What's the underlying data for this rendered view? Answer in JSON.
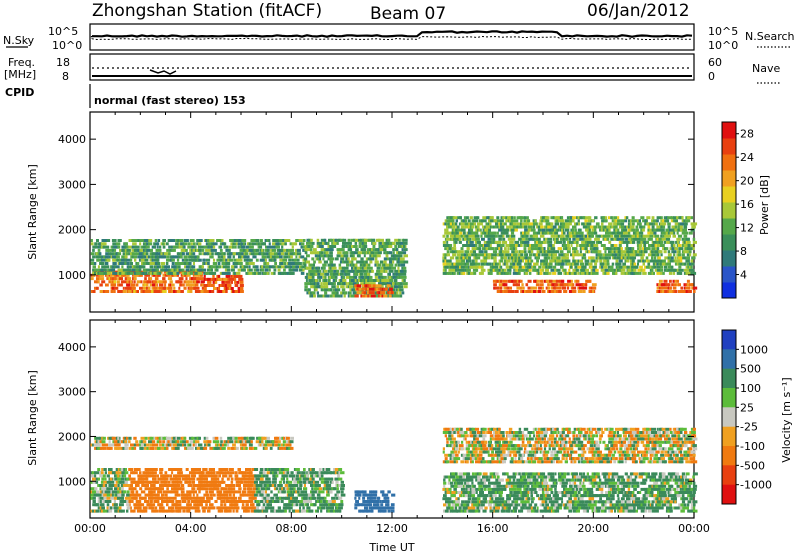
{
  "header": {
    "station": "Zhongshan Station (fitACF)",
    "beam": "Beam 07",
    "date": "06/Jan/2012"
  },
  "status_panels": {
    "nsky_label": "N.Sky",
    "nsky_ticks": [
      "10^5",
      "10^0"
    ],
    "nsearch_label": "N.Search",
    "nsearch_ticks": [
      "10^5",
      "10^0"
    ],
    "freq_label_1": "Freq.",
    "freq_label_2": "[MHz]",
    "freq_ticks": [
      "18",
      "8"
    ],
    "nave_label": "Nave",
    "nave_ticks": [
      "60",
      "0"
    ],
    "cpid_label": "CPID",
    "cpid_value": "normal (fast stereo) 153"
  },
  "chart_data": [
    {
      "type": "heatmap",
      "name": "power-panel",
      "ylabel": "Slant Range [km]",
      "xlabel": "",
      "xlim": [
        0,
        24
      ],
      "ylim": [
        180,
        4600
      ],
      "x_tick_labels": [],
      "y_ticks": [
        1000,
        2000,
        3000,
        4000
      ],
      "colorbar": {
        "label": "Power [dB]",
        "range": [
          0,
          30
        ],
        "ticks": [
          "4",
          "8",
          "12",
          "16",
          "20",
          "24",
          "28"
        ],
        "colors": [
          "#1030e0",
          "#2a55c8",
          "#2f7a7a",
          "#3a8f5a",
          "#55a84a",
          "#a8c838",
          "#e8d020",
          "#f0a020",
          "#f07010",
          "#e84010",
          "#e01010"
        ]
      },
      "echo_bands": [
        {
          "t_start": 0.0,
          "t_end": 4.5,
          "range_min": 600,
          "range_max": 1100,
          "level": 24
        },
        {
          "t_start": 4.5,
          "t_end": 6.0,
          "range_min": 600,
          "range_max": 1000,
          "level": 27
        },
        {
          "t_start": 0.0,
          "t_end": 8.5,
          "range_min": 1000,
          "range_max": 1800,
          "level": 10
        },
        {
          "t_start": 8.5,
          "t_end": 12.5,
          "range_min": 500,
          "range_max": 1800,
          "level": 11
        },
        {
          "t_start": 10.5,
          "t_end": 12.0,
          "range_min": 500,
          "range_max": 800,
          "level": 25
        },
        {
          "t_start": 16.0,
          "t_end": 20.0,
          "range_min": 600,
          "range_max": 900,
          "level": 25
        },
        {
          "t_start": 14.0,
          "t_end": 24.0,
          "range_min": 1000,
          "range_max": 2300,
          "level": 12
        },
        {
          "t_start": 22.5,
          "t_end": 24.0,
          "range_min": 600,
          "range_max": 900,
          "level": 26
        }
      ]
    },
    {
      "type": "heatmap",
      "name": "velocity-panel",
      "ylabel": "Slant Range [km]",
      "xlabel": "Time UT",
      "xlim": [
        0,
        24
      ],
      "ylim": [
        180,
        4600
      ],
      "x_tick_labels": [
        "00:00",
        "04:00",
        "08:00",
        "12:00",
        "16:00",
        "20:00",
        "00:00"
      ],
      "y_ticks": [
        1000,
        2000,
        3000,
        4000
      ],
      "colorbar": {
        "label": "Velocity [m s^-1]",
        "ticks": [
          "1000",
          "500",
          "100",
          "25",
          "-25",
          "-100",
          "-500",
          "-1000"
        ],
        "colors": [
          "#2040c0",
          "#3070a8",
          "#3a8a5a",
          "#5cbc3a",
          "#c8c8c0",
          "#f0a020",
          "#f07a10",
          "#e84010",
          "#e01010"
        ]
      },
      "echo_bands": [
        {
          "t_start": 0.0,
          "t_end": 8.0,
          "range_min": 1700,
          "range_max": 2000,
          "velocity": 0
        },
        {
          "t_start": 1.5,
          "t_end": 6.5,
          "range_min": 300,
          "range_max": 1300,
          "velocity": -300
        },
        {
          "t_start": 0.0,
          "t_end": 1.5,
          "range_min": 300,
          "range_max": 1300,
          "velocity": 100
        },
        {
          "t_start": 6.5,
          "t_end": 10.0,
          "range_min": 300,
          "range_max": 1300,
          "velocity": 150
        },
        {
          "t_start": 10.5,
          "t_end": 12.0,
          "range_min": 300,
          "range_max": 800,
          "velocity": 800
        },
        {
          "t_start": 14.0,
          "t_end": 24.0,
          "range_min": 1400,
          "range_max": 2200,
          "velocity": 0
        },
        {
          "t_start": 14.0,
          "t_end": 24.0,
          "range_min": 300,
          "range_max": 1200,
          "velocity": 150
        }
      ]
    }
  ]
}
